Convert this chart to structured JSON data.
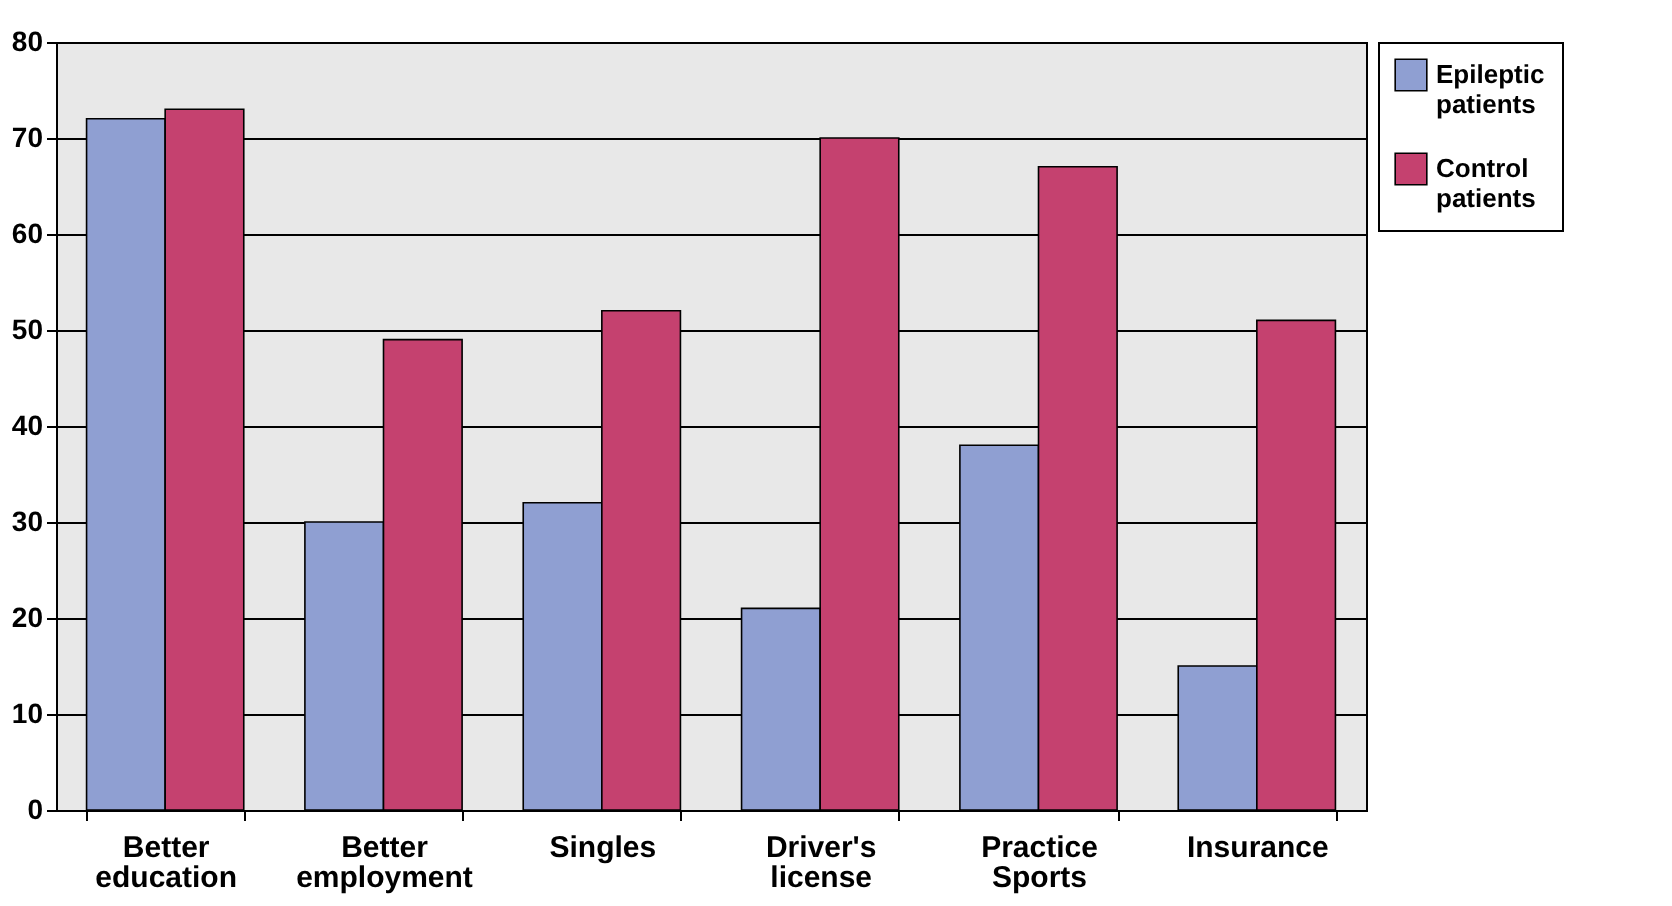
{
  "chart_data": {
    "type": "bar",
    "categories": [
      "Better education",
      "Better employment",
      "Singles",
      "Driver's license",
      "Practice Sports",
      "Insurance"
    ],
    "series": [
      {
        "name": "Epileptic patients",
        "color": "#8f9fd2",
        "values": [
          72,
          30,
          32,
          21,
          38,
          15
        ]
      },
      {
        "name": "Control patients",
        "color": "#c5416f",
        "values": [
          73,
          49,
          52,
          70,
          67,
          51
        ]
      }
    ],
    "ylim": [
      0,
      80
    ],
    "yticks": [
      0,
      10,
      20,
      30,
      40,
      50,
      60,
      70,
      80
    ],
    "grid": "y",
    "legend": "right"
  }
}
